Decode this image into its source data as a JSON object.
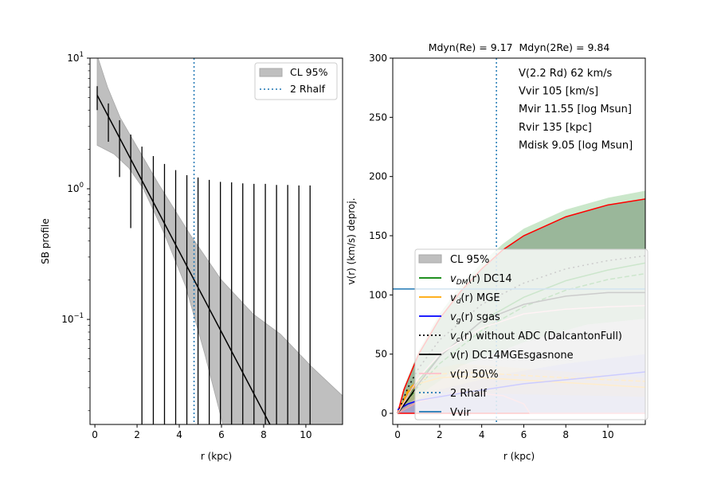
{
  "chart_data": [
    {
      "type": "line",
      "panel": "left",
      "title": "",
      "xlabel": "r (kpc)",
      "ylabel": "SB profile",
      "xlim": [
        -0.23,
        11.74
      ],
      "ylim": [
        0.0157,
        10
      ],
      "yscale": "log",
      "xticks": [
        0,
        2,
        4,
        6,
        8,
        10
      ],
      "yticks": [
        {
          "v": 0.1,
          "base": "10",
          "exp": "−1"
        },
        {
          "v": 1,
          "base": "10",
          "exp": "0"
        },
        {
          "v": 10,
          "base": "10",
          "exp": "1"
        }
      ],
      "legend": {
        "placement": "top-right",
        "entries": [
          {
            "label": "CL 95%",
            "kind": "patch",
            "color": "#bfbfbf"
          },
          {
            "label": "2 Rhalf",
            "kind": "dotted",
            "color": "#1f77b4"
          }
        ]
      },
      "band": {
        "label": "CL 95%",
        "color": "#bfbfbf",
        "upper": [
          [
            0.11,
            10.5
          ],
          [
            0.6,
            6
          ],
          [
            1.2,
            3.5
          ],
          [
            1.66,
            2.6
          ],
          [
            3,
            1.1
          ],
          [
            4.5,
            0.45
          ],
          [
            6,
            0.2
          ],
          [
            7.5,
            0.11
          ],
          [
            8.8,
            0.077
          ],
          [
            10.3,
            0.043
          ],
          [
            11.74,
            0.026
          ]
        ],
        "lower": [
          [
            0.11,
            2.15
          ],
          [
            0.9,
            1.85
          ],
          [
            1.6,
            1.45
          ],
          [
            2.3,
            1.0
          ],
          [
            3.3,
            0.45
          ],
          [
            4.3,
            0.18
          ],
          [
            5.2,
            0.055
          ],
          [
            6.1,
            0.015
          ]
        ]
      },
      "model": {
        "color": "#000000",
        "points": [
          [
            0.11,
            5.2
          ],
          [
            8.3,
            0.0157
          ]
        ]
      },
      "errorbars": {
        "color": "#000000",
        "x": [
          0.11,
          0.64,
          1.17,
          1.7,
          2.23,
          2.77,
          3.3,
          3.83,
          4.36,
          4.89,
          5.42,
          5.95,
          6.48,
          7.01,
          7.54,
          8.08,
          8.61,
          9.14,
          9.67,
          10.2
        ],
        "upper": [
          6.1,
          4.5,
          3.35,
          2.6,
          2.1,
          1.78,
          1.55,
          1.39,
          1.27,
          1.22,
          1.17,
          1.13,
          1.12,
          1.1,
          1.09,
          1.09,
          1.07,
          1.07,
          1.06,
          1.06
        ],
        "lower": [
          4.0,
          2.29,
          1.23,
          0.5,
          0.001,
          0.001,
          0.001,
          0.001,
          0.001,
          0.001,
          0.001,
          0.001,
          0.001,
          0.001,
          0.001,
          0.001,
          0.001,
          0.001,
          0.001,
          0.001
        ]
      },
      "vline": {
        "label": "2 Rhalf",
        "x": 4.7,
        "color": "#1f77b4"
      }
    },
    {
      "type": "line",
      "panel": "right",
      "title": "Mdyn(Re) = 9.17  Mdyn(2Re) = 9.84",
      "xlabel": "r (kpc)",
      "ylabel": "v(r) (km/s) deproj.",
      "xlim": [
        -0.23,
        11.78
      ],
      "ylim": [
        -9.4,
        300
      ],
      "xticks": [
        0,
        2,
        4,
        6,
        8,
        10
      ],
      "yticks": [
        0,
        50,
        100,
        150,
        200,
        250,
        300
      ],
      "annotations": [
        "V(2.2 Rd) 62 km/s",
        "Vvir 105 [km/s]",
        "Mvir 11.55 [log Msun]",
        "Rvir 135 [kpc]",
        "Mdisk 9.05 [log Msun]"
      ],
      "legend": {
        "placement": "lower-center",
        "entries": [
          {
            "label": "CL 95%",
            "kind": "patch",
            "color": "#bfbfbf"
          },
          {
            "label": "v_DM(r) DC14",
            "main": "v",
            "sub": "DM",
            "rest": "(r) DC14",
            "kind": "solid",
            "color": "#008000"
          },
          {
            "label": "v_d(r) MGE",
            "main": "v",
            "sub": "d",
            "rest": "(r) MGE",
            "kind": "solid",
            "color": "#ffa500"
          },
          {
            "label": "v_g(r) sgas",
            "main": "v",
            "sub": "g",
            "rest": "(r) sgas",
            "kind": "solid",
            "color": "#0000ff"
          },
          {
            "label": "v_c(r) without ADC (DalcantonFull)",
            "main": "v",
            "sub": "c",
            "rest": "(r) without ADC (DalcantonFull)",
            "kind": "dotted",
            "color": "#000000"
          },
          {
            "label": "v(r) DC14MGEsgasnone",
            "main": "v",
            "sub": "",
            "rest": "(r) DC14MGEsgasnone",
            "kind": "solid",
            "color": "#000000"
          },
          {
            "label": "v(r) 50\\%",
            "main": "v",
            "sub": "",
            "rest": "(r) 50\\%",
            "kind": "solid",
            "color": "#ffc0cb"
          },
          {
            "label": "2 Rhalf",
            "kind": "dotted",
            "color": "#1f77b4"
          },
          {
            "label": "Vvir",
            "kind": "solid",
            "color": "#1f77b4"
          }
        ]
      },
      "vline": {
        "label": "2 Rhalf",
        "x": 4.7,
        "color": "#1f77b4"
      },
      "hline": {
        "label": "Vvir",
        "y": 105,
        "color": "#1f77b4"
      },
      "bands": [
        {
          "name": "ci-grey",
          "color": "#808080",
          "opacity": 0.5,
          "upper": [
            [
              0,
              0
            ],
            [
              0.3,
              20
            ],
            [
              1,
              50
            ],
            [
              2,
              80
            ],
            [
              3,
              103
            ],
            [
              4,
              122
            ],
            [
              5,
              138
            ],
            [
              6,
              150
            ],
            [
              8,
              166
            ],
            [
              10,
              176
            ],
            [
              11.78,
              181
            ]
          ],
          "lower": [
            [
              0,
              0
            ],
            [
              11.78,
              0
            ]
          ]
        },
        {
          "name": "dm-green",
          "color": "#2ca02c",
          "opacity": 0.25,
          "upper": [
            [
              0,
              0
            ],
            [
              0.3,
              22
            ],
            [
              1,
              53
            ],
            [
              2,
              84
            ],
            [
              3,
              108
            ],
            [
              4,
              127
            ],
            [
              5,
              143
            ],
            [
              6,
              156
            ],
            [
              8,
              172
            ],
            [
              10,
              182
            ],
            [
              11.78,
              188
            ]
          ],
          "lower": [
            [
              0,
              0
            ],
            [
              1,
              15
            ],
            [
              3,
              40
            ],
            [
              6,
              60
            ],
            [
              9,
              75
            ],
            [
              11.78,
              80
            ]
          ]
        },
        {
          "name": "gas-blue",
          "color": "#4040ff",
          "opacity": 0.2,
          "upper": [
            [
              0,
              5
            ],
            [
              2,
              20
            ],
            [
              5,
              33
            ],
            [
              8,
              42
            ],
            [
              11.78,
              50
            ]
          ],
          "lower": [
            [
              0,
              0
            ],
            [
              11.78,
              0
            ]
          ]
        },
        {
          "name": "disk-orange",
          "color": "#ffa500",
          "opacity": 0.15,
          "upper": [
            [
              0,
              0
            ],
            [
              1,
              35
            ],
            [
              3,
              42
            ],
            [
              6,
              38
            ],
            [
              11.78,
              30
            ]
          ],
          "lower": [
            [
              0,
              0
            ],
            [
              2,
              18
            ],
            [
              6,
              16
            ],
            [
              11.78,
              14
            ]
          ]
        }
      ],
      "series": [
        {
          "name": "ci-upper-red",
          "color": "#ff0000",
          "dash": "",
          "points": [
            [
              0,
              0
            ],
            [
              0.3,
              20
            ],
            [
              1,
              50
            ],
            [
              2,
              80
            ],
            [
              3,
              103
            ],
            [
              4,
              122
            ],
            [
              5,
              138
            ],
            [
              6,
              150
            ],
            [
              8,
              166
            ],
            [
              10,
              176
            ],
            [
              11.78,
              181
            ]
          ]
        },
        {
          "name": "ci-lower-red",
          "color": "#ff0000",
          "dash": "",
          "points": [
            [
              0,
              0
            ],
            [
              11.78,
              0
            ]
          ]
        },
        {
          "name": "v-50-lower-pink",
          "color": "#f4a0a8",
          "dash": "",
          "points": [
            [
              0,
              0
            ],
            [
              1,
              10
            ],
            [
              3,
              18
            ],
            [
              5,
              15
            ],
            [
              6,
              8
            ],
            [
              6.3,
              0
            ],
            [
              11.78,
              0
            ]
          ]
        },
        {
          "name": "v-dm",
          "color": "#008000",
          "dash": "",
          "points": [
            [
              0,
              0
            ],
            [
              0.5,
              15
            ],
            [
              1,
              28
            ],
            [
              2,
              48
            ],
            [
              4,
              78
            ],
            [
              6,
              98
            ],
            [
              8,
              112
            ],
            [
              10,
              121
            ],
            [
              11.78,
              127
            ]
          ]
        },
        {
          "name": "v-dm-alt",
          "color": "#008000",
          "dash": "6,3",
          "points": [
            [
              0,
              0
            ],
            [
              0.5,
              12
            ],
            [
              1,
              23
            ],
            [
              2,
              42
            ],
            [
              4,
              70
            ],
            [
              6,
              90
            ],
            [
              8,
              104
            ],
            [
              10,
              113
            ],
            [
              11.78,
              118
            ]
          ]
        },
        {
          "name": "v-disk",
          "color": "#ffa500",
          "dash": "",
          "points": [
            [
              0,
              0
            ],
            [
              0.5,
              18
            ],
            [
              1,
              25
            ],
            [
              2,
              30
            ],
            [
              3,
              31
            ],
            [
              5,
              29
            ],
            [
              8,
              26
            ],
            [
              11.78,
              22
            ]
          ]
        },
        {
          "name": "v-disk-alt",
          "color": "#ffa500",
          "dash": "6,3",
          "points": [
            [
              0,
              0
            ],
            [
              0.5,
              20
            ],
            [
              1,
              28
            ],
            [
              2,
              33
            ],
            [
              3,
              35
            ],
            [
              5,
              33
            ],
            [
              8,
              30
            ],
            [
              11.78,
              27
            ]
          ]
        },
        {
          "name": "v-gas",
          "color": "#0000ff",
          "dash": "",
          "points": [
            [
              0,
              3
            ],
            [
              0.5,
              8
            ],
            [
              1,
              11
            ],
            [
              3,
              17
            ],
            [
              6,
              25
            ],
            [
              9,
              30
            ],
            [
              11.78,
              35
            ]
          ]
        },
        {
          "name": "v-c-no-adc",
          "color": "#000000",
          "dash": "2,4",
          "points": [
            [
              0,
              0
            ],
            [
              0.5,
              22
            ],
            [
              1,
              38
            ],
            [
              2,
              62
            ],
            [
              4,
              92
            ],
            [
              6,
              110
            ],
            [
              8,
              122
            ],
            [
              10,
              129
            ],
            [
              11.78,
              133
            ]
          ]
        },
        {
          "name": "v-total",
          "color": "#000000",
          "dash": "",
          "points": [
            [
              0,
              0
            ],
            [
              0.5,
              12
            ],
            [
              1,
              25
            ],
            [
              2,
              48
            ],
            [
              4,
              78
            ],
            [
              6,
              92
            ],
            [
              8,
              99
            ],
            [
              10,
              102
            ],
            [
              11.78,
              102
            ]
          ]
        },
        {
          "name": "v-50",
          "color": "#ffc0cb",
          "dash": "",
          "points": [
            [
              0,
              0
            ],
            [
              1,
              30
            ],
            [
              2,
              50
            ],
            [
              4,
              72
            ],
            [
              6,
              84
            ],
            [
              8,
              88
            ],
            [
              10,
              90
            ],
            [
              11.78,
              91
            ]
          ]
        }
      ]
    }
  ]
}
